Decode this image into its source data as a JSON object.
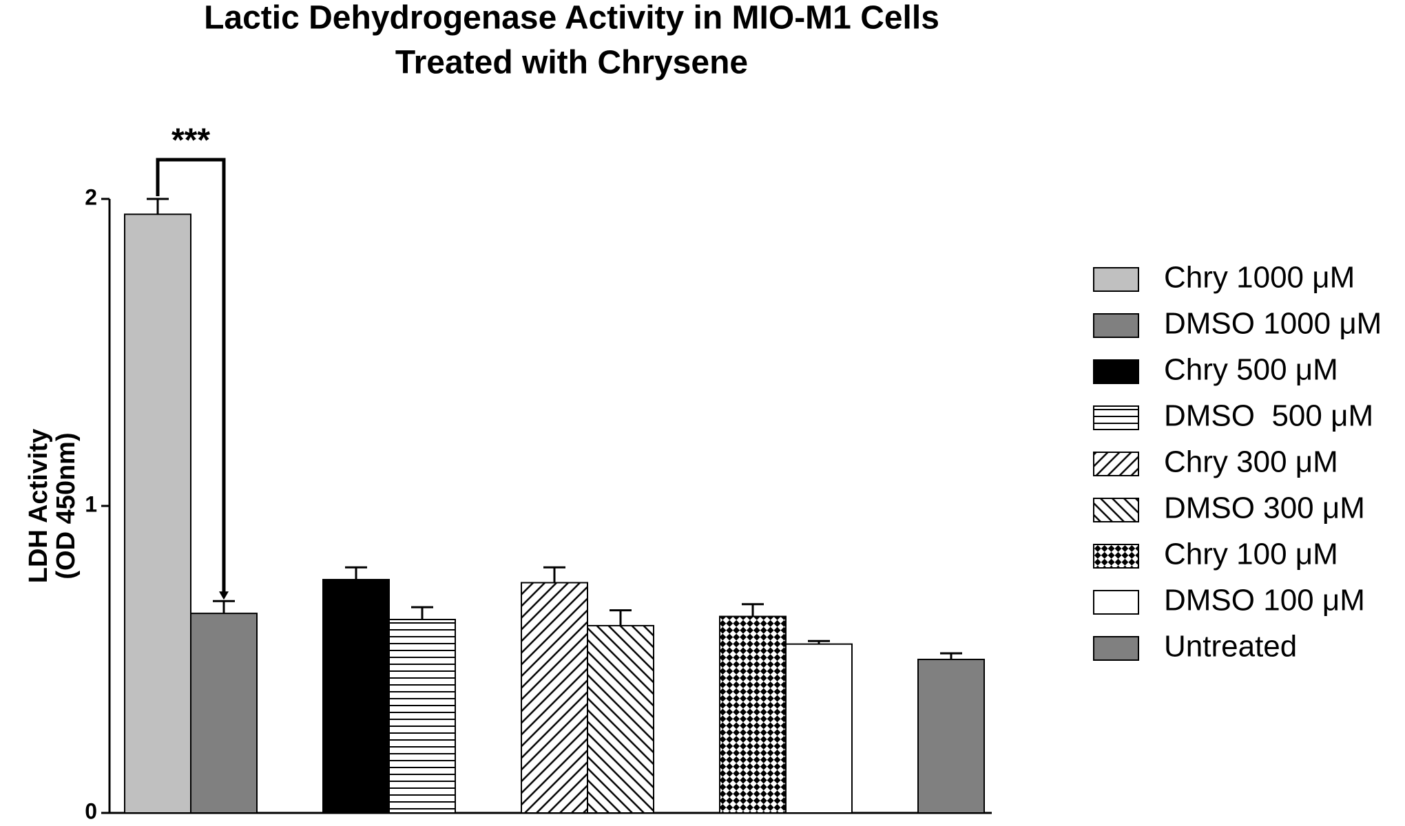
{
  "chart_data": {
    "type": "bar",
    "title": "Lactic Dehydrogenase Activity in MIO-M1 Cells",
    "subtitle": "Treated with Chrysene",
    "y_label": [
      "LDH Activity",
      "(OD 450nm)"
    ],
    "ylim": [
      0,
      2
    ],
    "yticks": [
      0,
      1,
      2
    ],
    "significance": "***",
    "series": [
      {
        "name": "Chry 1000 μM",
        "color": "#c0c0c0",
        "pattern": "solid",
        "values": [
          1.95
        ],
        "errors": [
          0.05
        ]
      },
      {
        "name": "DMSO 1000 μM",
        "color": "#808080",
        "pattern": "solid",
        "values": [
          0.65
        ],
        "errors": [
          0.04
        ]
      },
      {
        "name": "Chry 500 μM",
        "color": "#000000",
        "pattern": "solid",
        "values": [
          0.76
        ],
        "errors": [
          0.04
        ]
      },
      {
        "name": "DMSO  500 μM",
        "color": "#000000",
        "pattern": "hlines",
        "values": [
          0.63
        ],
        "errors": [
          0.04
        ]
      },
      {
        "name": "Chry 300 μM",
        "color": "#000000",
        "pattern": "diag-down",
        "values": [
          0.75
        ],
        "errors": [
          0.05
        ]
      },
      {
        "name": "DMSO 300 μM",
        "color": "#000000",
        "pattern": "diag-up",
        "values": [
          0.61
        ],
        "errors": [
          0.05
        ]
      },
      {
        "name": "Chry 100 μM",
        "color": "#000000",
        "pattern": "crosshatch",
        "values": [
          0.64
        ],
        "errors": [
          0.04
        ]
      },
      {
        "name": "DMSO 100 μM",
        "color": "#ffffff",
        "pattern": "solid",
        "values": [
          0.55
        ],
        "errors": [
          0.01
        ]
      },
      {
        "name": "Untreated",
        "color": "#808080",
        "pattern": "solid",
        "values": [
          0.5
        ],
        "errors": [
          0.02
        ]
      }
    ]
  }
}
